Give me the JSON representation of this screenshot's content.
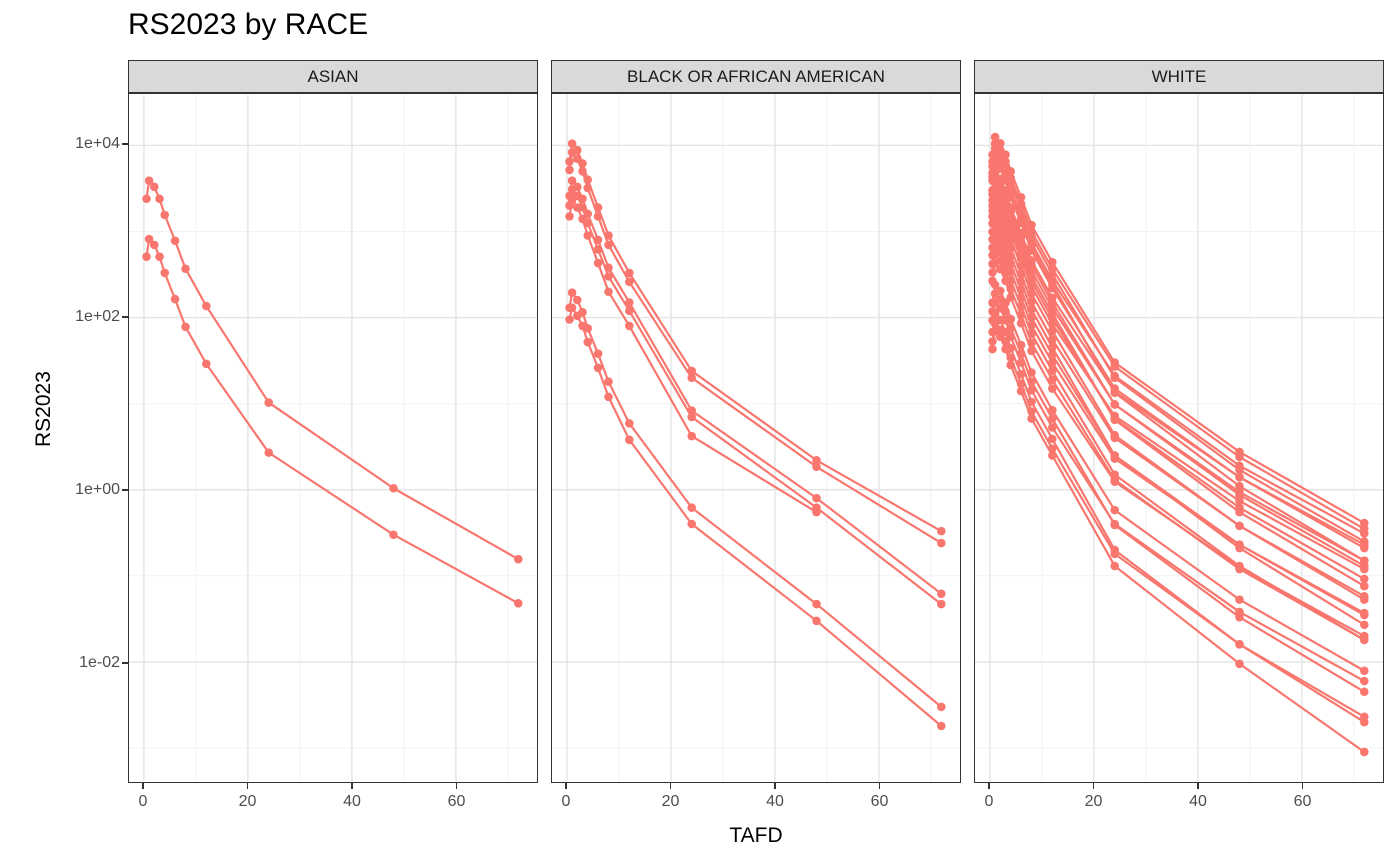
{
  "title": "RS2023 by RACE",
  "chart_data": {
    "type": "line",
    "title": "RS2023 by RACE",
    "xlabel": "TAFD",
    "ylabel": "RS2023",
    "legend": "none",
    "grid": true,
    "points_on_lines": true,
    "line_color": "#F8766D",
    "x_scale": "linear",
    "y_scale": "log10",
    "xlim": [
      -2.9,
      75.4
    ],
    "ylim": [
      0.00033,
      35000
    ],
    "x_ticks": [
      0,
      20,
      40,
      60
    ],
    "x_minor_ticks": [
      10,
      30,
      50,
      70
    ],
    "y_tick_labels": [
      "1e+04",
      "1e+02",
      "1e+00",
      "1e-02"
    ],
    "y_tick_values": [
      10000,
      100,
      1,
      0.01
    ],
    "y_minor_tick_values": [
      1000,
      10,
      0.1,
      0.001
    ],
    "times": [
      0.5,
      1,
      2,
      3,
      4,
      6,
      8,
      12,
      24,
      48,
      72
    ],
    "facets": [
      {
        "label": "ASIAN",
        "series": [
          {
            "values": [
              2400,
              3900,
              3300,
              2400,
              1560,
              780,
              370,
              136,
              10.3,
              1.04,
              0.156
            ]
          },
          {
            "values": [
              510,
              820,
              700,
              510,
              330,
              164,
              78,
              29,
              2.7,
              0.3,
              0.048
            ]
          }
        ]
      },
      {
        "label": "BLACK OR AFRICAN AMERICAN",
        "series": [
          {
            "values": [
              6500,
              10500,
              8800,
              6200,
              4000,
              1900,
              900,
              330,
              24,
              2.2,
              0.33
            ]
          },
          {
            "values": [
              5200,
              8300,
              7000,
              5000,
              3200,
              1500,
              700,
              260,
              20,
              1.85,
              0.24
            ]
          },
          {
            "values": [
              2600,
              3900,
              3300,
              2400,
              1600,
              800,
              380,
              150,
              8.3,
              0.8,
              0.062
            ]
          },
          {
            "values": [
              2000,
              3100,
              2600,
              1900,
              1250,
              620,
              300,
              120,
              7.0,
              0.62,
              0.047
            ]
          },
          {
            "times": [
              0.5,
              1,
              2,
              3,
              4,
              6,
              8,
              12,
              24,
              48
            ],
            "values": [
              1500,
              2300,
              1900,
              1400,
              900,
              430,
              200,
              80,
              4.2,
              0.55
            ]
          },
          {
            "values": [
              130,
              195,
              160,
              115,
              75,
              38,
              18,
              5.9,
              0.62,
              0.047,
              0.003
            ]
          },
          {
            "values": [
              95,
              130,
              105,
              80,
              52,
              26,
              12,
              3.8,
              0.4,
              0.03,
              0.0018
            ]
          }
        ]
      },
      {
        "label": "WHITE",
        "series": [
          {
            "values": [
              7800,
              12500,
              10600,
              7800,
              5000,
              2500,
              1190,
              440,
              30,
              2.75,
              0.41
            ]
          },
          {
            "values": [
              6500,
              10500,
              8900,
              6500,
              4200,
              2100,
              1000,
              370,
              27,
              2.4,
              0.35
            ]
          },
          {
            "values": [
              5700,
              9200,
              7800,
              5700,
              3700,
              1840,
              880,
              320,
              20,
              1.7,
              0.25
            ]
          },
          {
            "values": [
              4800,
              7800,
              6600,
              4800,
              3100,
              1560,
              740,
              270,
              21,
              1.9,
              0.31
            ]
          },
          {
            "values": [
              4300,
              7000,
              6000,
              4300,
              2800,
              1400,
              670,
              245,
              13.4,
              1.1,
              0.15
            ]
          },
          {
            "values": [
              3900,
              6300,
              5400,
              3900,
              2500,
              1260,
              600,
              220,
              15,
              1.4,
              0.21
            ]
          },
          {
            "values": [
              3000,
              4800,
              4100,
              3000,
              1900,
              960,
              460,
              170,
              13.8,
              1.4,
              0.23
            ]
          },
          {
            "values": [
              2700,
              4300,
              3700,
              2700,
              1700,
              860,
              410,
              150,
              9.8,
              0.87,
              0.13
            ]
          },
          {
            "values": [
              2300,
              3700,
              3100,
              2300,
              1500,
              740,
              350,
              130,
              9.8,
              0.94,
              0.15
            ]
          },
          {
            "values": [
              2000,
              3200,
              2700,
              2000,
              1300,
              640,
              300,
              112,
              6.5,
              0.55,
              0.076
            ]
          },
          {
            "values": [
              1740,
              2800,
              2400,
              1740,
              1120,
              560,
              265,
              98,
              6.7,
              0.62,
              0.092
            ]
          },
          {
            "values": [
              1490,
              2400,
              2000,
              1490,
              960,
              480,
              230,
              84,
              7.2,
              0.74,
              0.12
            ]
          },
          {
            "values": [
              1240,
              2000,
              1700,
              1240,
              800,
              400,
              190,
              70,
              4.3,
              0.38,
              0.053
            ]
          },
          {
            "values": [
              990,
              1600,
              1360,
              990,
              640,
              320,
              152,
              56,
              4.0,
              0.38,
              0.058
            ]
          },
          {
            "values": [
              810,
              1300,
              1100,
              810,
              520,
              260,
              124,
              45,
              2.5,
              0.21,
              0.027
            ]
          },
          {
            "values": [
              650,
              1050,
              890,
              650,
              420,
              210,
              100,
              37,
              2.5,
              0.23,
              0.035
            ]
          },
          {
            "values": [
              530,
              850,
              720,
              530,
              340,
              170,
              81,
              30,
              2.3,
              0.23,
              0.037
            ]
          },
          {
            "values": [
              420,
              680,
              580,
              420,
              270,
              136,
              65,
              24,
              1.5,
              0.13,
              0.018
            ]
          },
          {
            "values": [
              335,
              540,
              460,
              335,
              216,
              108,
              51,
              19,
              1.3,
              0.12,
              0.018
            ]
          },
          {
            "values": [
              267,
              430,
              365,
              267,
              172,
              86,
              41,
              15,
              1.24,
              0.125,
              0.02
            ]
          },
          {
            "values": [
              149,
              240,
              204,
              149,
              96,
              48,
              23,
              8.4,
              0.58,
              0.053,
              0.0079
            ]
          },
          {
            "values": [
              118,
              190,
              162,
              118,
              76,
              38,
              18,
              6.7,
              0.39,
              0.033,
              0.0045
            ]
          },
          {
            "values": [
              93,
              150,
              128,
              93,
              60,
              30,
              14.3,
              5.3,
              0.4,
              0.038,
              0.006
            ]
          },
          {
            "values": [
              68,
              110,
              94,
              68,
              44,
              22,
              10.5,
              3.9,
              0.2,
              0.016,
              0.002
            ]
          },
          {
            "values": [
              53,
              85,
              72,
              53,
              34,
              17,
              8.1,
              3.0,
              0.18,
              0.016,
              0.0023
            ]
          },
          {
            "values": [
              43,
              70,
              60,
              43,
              28,
              14,
              6.7,
              2.5,
              0.13,
              0.0095,
              0.0009
            ]
          }
        ]
      }
    ],
    "style": {
      "strip_bg": "#d9d9d9",
      "panel_bg": "#ffffff",
      "panel_border": "#333333",
      "grid_major": "#e4e4e4",
      "grid_minor": "#f0f0f0",
      "tick_text": "#4d4d4d"
    }
  }
}
